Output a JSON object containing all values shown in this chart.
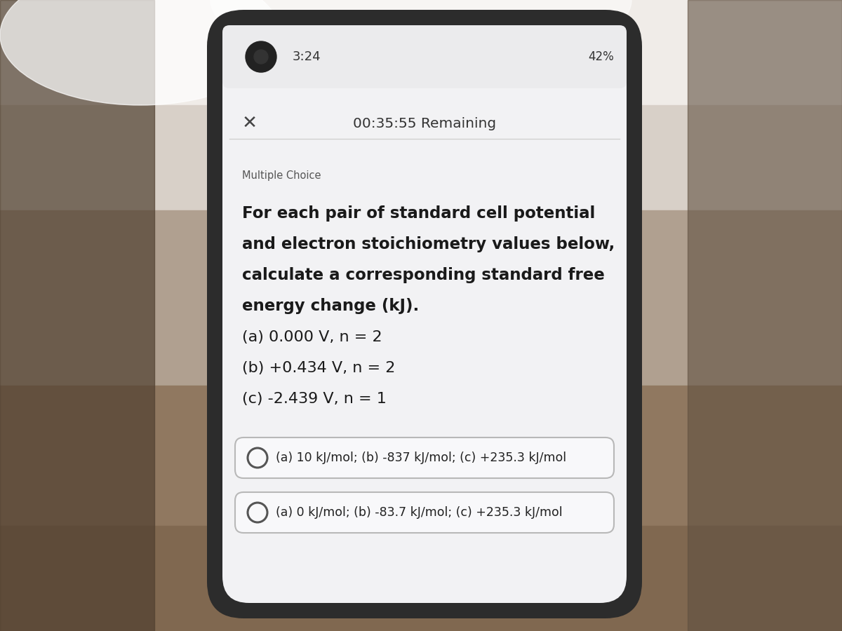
{
  "bg_top_color": "#e8e0d8",
  "bg_mid_color": "#b8a888",
  "bg_left_color": "#7a6a50",
  "bg_right_color": "#8a7a60",
  "phone_bg": "#2a2a2a",
  "phone_edge": "#1a1a1a",
  "screen_bg": "#f2f2f4",
  "screen_top_color": "#e0dede",
  "status_bar_time": "3:24",
  "status_bar_right": "X ♪ • 42%",
  "timer_text": "00:35:55 Remaining",
  "label_text": "Multiple Choice",
  "question_lines": [
    "For each pair of standard cell potential",
    "and electron stoichiometry values below,",
    "calculate a corresponding standard free",
    "energy change (kJ).",
    "(a) 0.000 V, n = 2",
    "(b) +0.434 V, n = 2",
    "(c) -2.439 V, n = 1"
  ],
  "question_bold": [
    true,
    true,
    true,
    true,
    false,
    false,
    false
  ],
  "option1": "(a) 10 kJ/mol; (b) -837 kJ/mol; (c) +235.3 kJ/mol",
  "option2": "(a) 0 kJ/mol; (b) -83.7 kJ/mol; (c) +235.3 kJ/mol"
}
